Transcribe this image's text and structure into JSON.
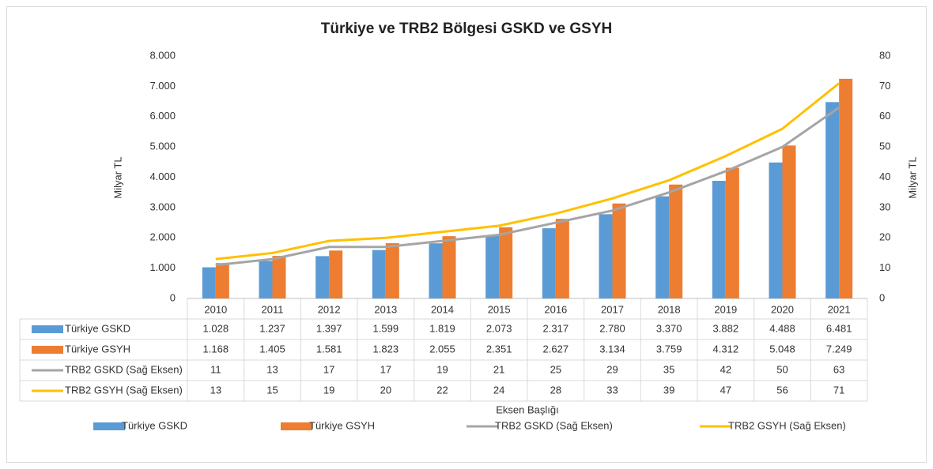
{
  "chart_data": {
    "type": "bar",
    "title": "Türkiye ve TRB2 Bölgesi GSKD ve GSYH",
    "categories": [
      "2010",
      "2011",
      "2012",
      "2013",
      "2014",
      "2015",
      "2016",
      "2017",
      "2018",
      "2019",
      "2020",
      "2021"
    ],
    "series": [
      {
        "name": "Türkiye GSKD",
        "color": "#5b9bd5",
        "values": [
          1028,
          1237,
          1397,
          1599,
          1819,
          2073,
          2317,
          2780,
          3370,
          3882,
          4488,
          6481
        ],
        "value_labels": [
          "1.028",
          "1.237",
          "1.397",
          "1.599",
          "1.819",
          "2.073",
          "2.317",
          "2.780",
          "3.370",
          "3.882",
          "4.488",
          "6.481"
        ]
      },
      {
        "name": "Türkiye GSYH",
        "color": "#ed7d31",
        "values": [
          1168,
          1405,
          1581,
          1823,
          2055,
          2351,
          2627,
          3134,
          3759,
          4312,
          5048,
          7249
        ],
        "value_labels": [
          "1.168",
          "1.405",
          "1.581",
          "1.823",
          "2.055",
          "2.351",
          "2.627",
          "3.134",
          "3.759",
          "4.312",
          "5.048",
          "7.249"
        ]
      },
      {
        "name": "TRB2 GSKD (Sağ Eksen)",
        "color": "#a5a5a5",
        "type": "line",
        "axis": "y2",
        "values": [
          11,
          13,
          17,
          17,
          19,
          21,
          25,
          29,
          35,
          42,
          50,
          63
        ]
      },
      {
        "name": "TRB2 GSYH (Sağ Eksen)",
        "color": "#ffc000",
        "type": "line",
        "axis": "y2",
        "values": [
          13,
          15,
          19,
          20,
          22,
          24,
          28,
          33,
          39,
          47,
          56,
          71
        ]
      }
    ],
    "ylim": [
      0,
      8000
    ],
    "yticks": [
      0,
      {
        "value": 1000,
        "label": "1.000"
      },
      {
        "value": 2000,
        "label": "2.000"
      },
      {
        "value": 3000,
        "label": "3.000"
      },
      {
        "value": 4000,
        "label": "4.000"
      },
      {
        "value": 5000,
        "label": "5.000"
      },
      {
        "value": 6000,
        "label": "6.000"
      },
      {
        "value": 7000,
        "label": "7.000"
      },
      {
        "value": 8000,
        "label": "8.000"
      }
    ],
    "y2lim": [
      0,
      80
    ],
    "y2ticks": [
      0,
      10,
      20,
      30,
      40,
      50,
      60,
      70,
      80
    ],
    "ylabel": "Milyar TL",
    "y2label": "Milyar TL",
    "xlabel": "Eksen Başlığı",
    "grid": false,
    "legend": "bottom"
  }
}
